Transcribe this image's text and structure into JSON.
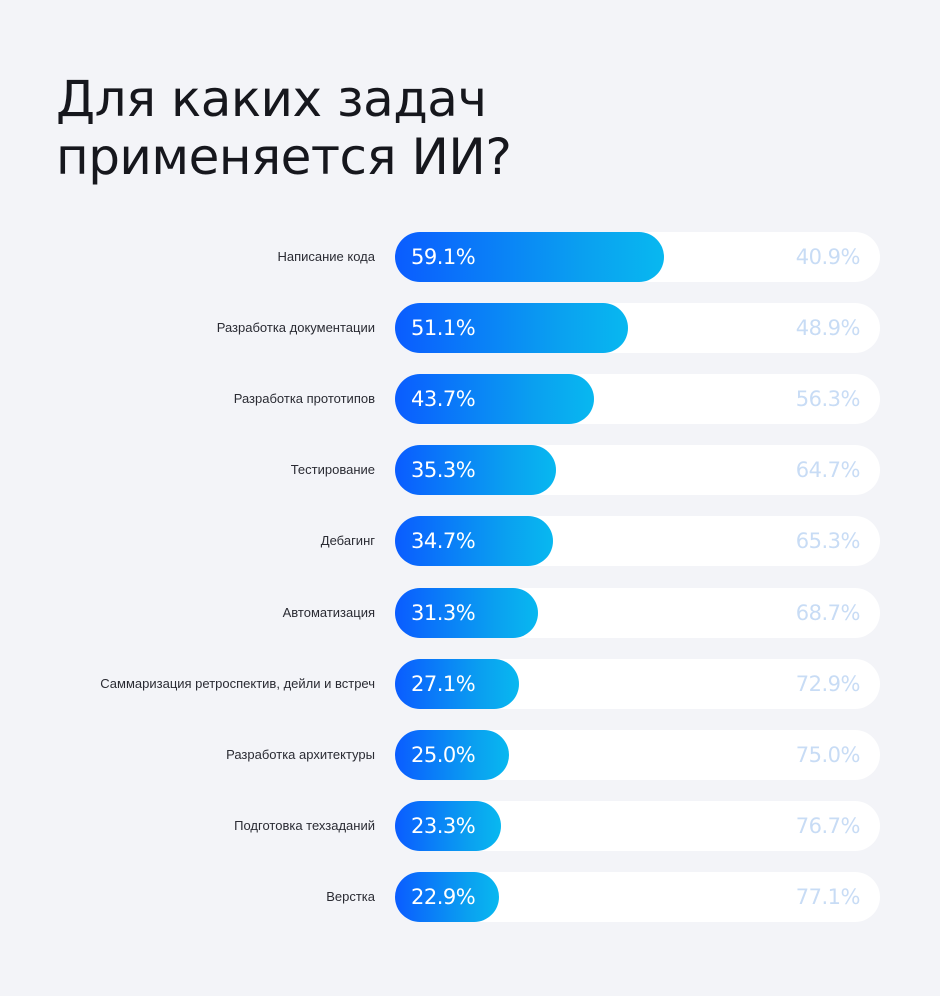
{
  "chart_data": {
    "type": "bar",
    "orientation": "horizontal",
    "stacked_to": 100,
    "title": "Для каких задач применяется ИИ?",
    "title_lines": [
      "Для каких задач",
      "применяется ИИ?"
    ],
    "categories": [
      "Написание кода",
      "Разработка документации",
      "Разработка прототипов",
      "Тестирование",
      "Дебагинг",
      "Автоматизация",
      "Саммаризация ретроспектив, дейли и встреч",
      "Разработка архитектуры",
      "Подготовка техзаданий",
      "Верстка"
    ],
    "values": [
      59.1,
      51.1,
      43.7,
      35.3,
      34.7,
      31.3,
      27.1,
      25.0,
      23.3,
      22.9
    ],
    "value_labels": [
      "59.1%",
      "51.1%",
      "43.7%",
      "35.3%",
      "34.7%",
      "31.3%",
      "27.1%",
      "25.0%",
      "23.3%",
      "22.9%"
    ],
    "remainder": [
      40.9,
      48.9,
      56.3,
      64.7,
      65.3,
      68.7,
      72.9,
      75.0,
      76.7,
      77.1
    ],
    "remainder_labels": [
      "40.9%",
      "48.9%",
      "56.3%",
      "64.7%",
      "65.3%",
      "68.7%",
      "72.9%",
      "75.0%",
      "76.7%",
      "77.1%"
    ],
    "colors": {
      "bar_start": "#0a5cff",
      "bar_end": "#08b8f0",
      "track": "#ffffff",
      "remainder_text": "#c8dcf5",
      "background": "#f3f4f8"
    },
    "grid": false,
    "legend": "none"
  }
}
